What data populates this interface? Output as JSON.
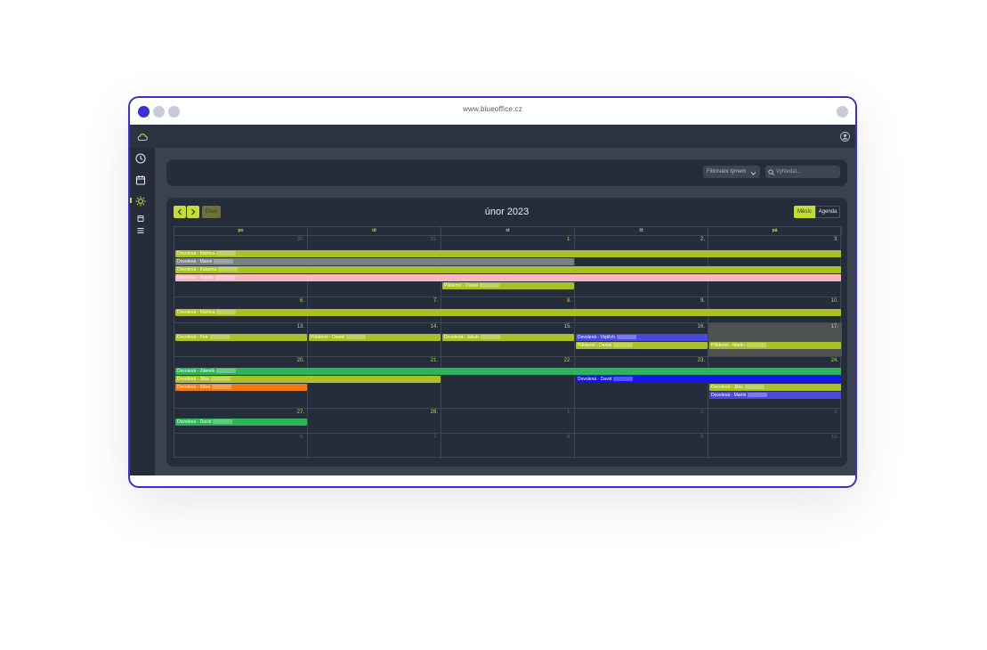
{
  "browser": {
    "url": "www.blueoffice.cz"
  },
  "toolbar": {
    "filter_label": "Filtrování týmem",
    "search_placeholder": "Vyhledat..."
  },
  "calendar": {
    "title": "únor 2023",
    "today_label": "Dnes",
    "view_month": "Měsíc",
    "view_agenda": "Agenda",
    "weekdays": [
      "po",
      "út",
      "st",
      "čt",
      "pá"
    ],
    "weeks": [
      {
        "days": [
          {
            "n": "30.",
            "cur": false
          },
          {
            "n": "31.",
            "cur": false
          },
          {
            "n": "1.",
            "cur": true
          },
          {
            "n": "2.",
            "cur": true
          },
          {
            "n": "3.",
            "cur": true
          }
        ]
      },
      {
        "days": [
          {
            "n": "6.",
            "cur": true
          },
          {
            "n": "7.",
            "cur": true
          },
          {
            "n": "8.",
            "cur": true
          },
          {
            "n": "9.",
            "cur": true
          },
          {
            "n": "10.",
            "cur": true
          }
        ]
      },
      {
        "days": [
          {
            "n": "13.",
            "cur": true
          },
          {
            "n": "14.",
            "cur": true
          },
          {
            "n": "15.",
            "cur": true
          },
          {
            "n": "16.",
            "cur": true
          },
          {
            "n": "17.",
            "cur": true
          }
        ]
      },
      {
        "days": [
          {
            "n": "20.",
            "cur": true
          },
          {
            "n": "21.",
            "cur": true
          },
          {
            "n": "22.",
            "cur": true
          },
          {
            "n": "23.",
            "cur": true
          },
          {
            "n": "24.",
            "cur": true
          }
        ]
      },
      {
        "days": [
          {
            "n": "27.",
            "cur": true
          },
          {
            "n": "28.",
            "cur": true
          },
          {
            "n": "1.",
            "cur": false
          },
          {
            "n": "2.",
            "cur": false
          },
          {
            "n": "3.",
            "cur": false
          }
        ]
      },
      {
        "days": [
          {
            "n": "6.",
            "cur": false
          },
          {
            "n": "7.",
            "cur": false
          },
          {
            "n": "8.",
            "cur": false
          },
          {
            "n": "9.",
            "cur": false
          },
          {
            "n": "10.",
            "cur": false
          }
        ]
      }
    ],
    "events": [
      {
        "week": 0,
        "row": 0,
        "start": 0,
        "span": 5,
        "label": "Dovolená - Martina",
        "color": "#a9c027"
      },
      {
        "week": 0,
        "row": 1,
        "start": 0,
        "span": 3,
        "label": "Dovolená - Marek",
        "color": "#7b7f86"
      },
      {
        "week": 0,
        "row": 2,
        "start": 0,
        "span": 5,
        "label": "Dovolená - Katarina",
        "color": "#a9c027"
      },
      {
        "week": 0,
        "row": 3,
        "start": 0,
        "span": 5,
        "label": "Dovolená - Natálie",
        "color": "#f7b6c2"
      },
      {
        "week": 0,
        "row": 4,
        "start": 2,
        "span": 1,
        "label": "Půldenní - Daniel",
        "color": "#a9c027"
      },
      {
        "week": 1,
        "row": 0,
        "start": 0,
        "span": 5,
        "label": "Dovolená - Martina",
        "color": "#a9c027"
      },
      {
        "week": 2,
        "row": 0,
        "start": 0,
        "span": 1,
        "label": "Dovolená - Petr",
        "color": "#a9c027"
      },
      {
        "week": 2,
        "row": 0,
        "start": 1,
        "span": 1,
        "label": "Půldenní - Daniel",
        "color": "#a9c027"
      },
      {
        "week": 2,
        "row": 0,
        "start": 2,
        "span": 1,
        "label": "Dovolená - Jakub",
        "color": "#a9c027"
      },
      {
        "week": 2,
        "row": 0,
        "start": 3,
        "span": 1,
        "label": "Dovolená - Vojtěch",
        "color": "#4b48e0"
      },
      {
        "week": 2,
        "row": 1,
        "start": 3,
        "span": 1,
        "label": "Půldenní - Daniel",
        "color": "#a9c027"
      },
      {
        "week": 2,
        "row": 1,
        "start": 4,
        "span": 1,
        "label": "Půldenní - Martin",
        "color": "#a9c027"
      },
      {
        "week": 3,
        "row": 0,
        "start": 0,
        "span": 5,
        "label": "Dovolená - Zdeněk",
        "color": "#2db35a"
      },
      {
        "week": 3,
        "row": 1,
        "start": 0,
        "span": 2,
        "label": "Dovolená - Jitka",
        "color": "#a9c027"
      },
      {
        "week": 3,
        "row": 1,
        "start": 3,
        "span": 2,
        "label": "Dovolená - David",
        "color": "#1515e8"
      },
      {
        "week": 3,
        "row": 2,
        "start": 0,
        "span": 1,
        "label": "Dovolená - Klára",
        "color": "#ef7a16"
      },
      {
        "week": 3,
        "row": 2,
        "start": 4,
        "span": 1,
        "label": "Dovolená - Jitka",
        "color": "#a9c027"
      },
      {
        "week": 3,
        "row": 3,
        "start": 4,
        "span": 1,
        "label": "Dovolená - Martin",
        "color": "#4b48e0"
      },
      {
        "week": 4,
        "row": 0,
        "start": 0,
        "span": 1,
        "label": "Dovolená - David",
        "color": "#2db35a"
      }
    ]
  }
}
